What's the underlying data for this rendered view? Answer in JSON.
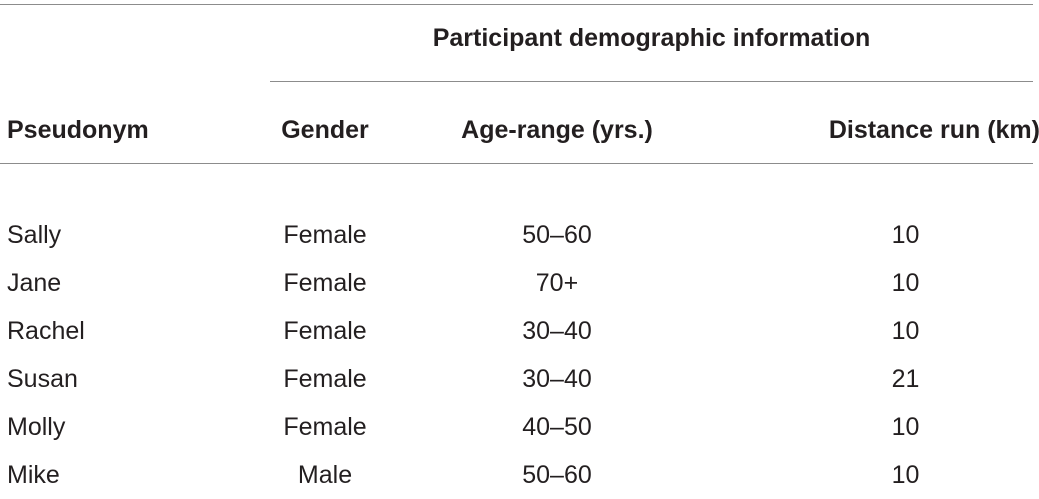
{
  "table": {
    "group_header": "Participant demographic information",
    "columns": [
      "Pseudonym",
      "Gender",
      "Age-range (yrs.)",
      "Distance run (km)"
    ],
    "rows": [
      [
        "Sally",
        "Female",
        "50–60",
        "10"
      ],
      [
        "Jane",
        "Female",
        "70+",
        "10"
      ],
      [
        "Rachel",
        "Female",
        "30–40",
        "10"
      ],
      [
        "Susan",
        "Female",
        "30–40",
        "21"
      ],
      [
        "Molly",
        "Female",
        "40–50",
        "10"
      ],
      [
        "Mike",
        "Male",
        "50–60",
        "10"
      ]
    ]
  }
}
